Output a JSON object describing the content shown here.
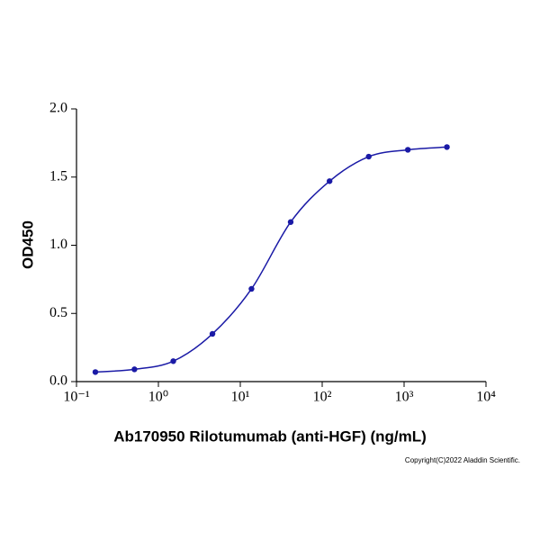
{
  "chart_data": {
    "type": "line",
    "x_label": "Ab170950 Rilotumumab (anti-HGF) (ng/mL)",
    "y_label": "OD450",
    "annotation": "Copyright(C)2022 Aladdin Scientific.",
    "x_log": true,
    "x": [
      0.17,
      0.51,
      1.52,
      4.57,
      13.7,
      41.2,
      123,
      370,
      1111,
      3333
    ],
    "series": [
      {
        "name": "Rilotumumab",
        "color": "#1a1aa6",
        "values": [
          0.07,
          0.09,
          0.15,
          0.35,
          0.68,
          1.17,
          1.47,
          1.65,
          1.7,
          1.72
        ]
      }
    ],
    "xlim": [
      0.1,
      10000
    ],
    "xticks": [
      {
        "value": 0.1,
        "label": "10⁻¹"
      },
      {
        "value": 1,
        "label": "10⁰"
      },
      {
        "value": 10,
        "label": "10¹"
      },
      {
        "value": 100,
        "label": "10²"
      },
      {
        "value": 1000,
        "label": "10³"
      },
      {
        "value": 10000,
        "label": "10⁴"
      }
    ],
    "ylim": [
      0,
      2
    ],
    "yticks": [
      {
        "value": 0,
        "label": "0.0"
      },
      {
        "value": 0.5,
        "label": "0.5"
      },
      {
        "value": 1,
        "label": "1.0"
      },
      {
        "value": 1.5,
        "label": "1.5"
      },
      {
        "value": 2,
        "label": "2.0"
      }
    ],
    "grid": false
  }
}
